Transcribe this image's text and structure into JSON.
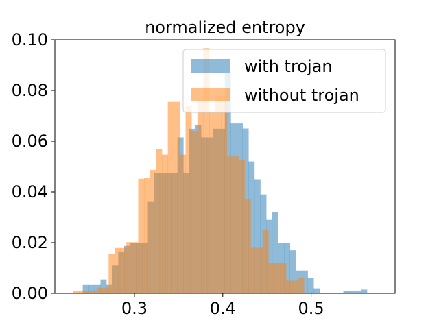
{
  "chart_data": {
    "type": "histogram",
    "title": "normalized entropy",
    "xlabel": "",
    "ylabel": "",
    "xlim": [
      0.21,
      0.595
    ],
    "ylim": [
      0,
      0.1
    ],
    "x_ticks": [
      0.3,
      0.4,
      0.5
    ],
    "x_tick_labels": [
      "0.3",
      "0.4",
      "0.5"
    ],
    "y_ticks": [
      0,
      0.02,
      0.04,
      0.06,
      0.08,
      0.1
    ],
    "y_tick_labels": [
      "0.00",
      "0.02",
      "0.04",
      "0.06",
      "0.08",
      "0.10"
    ],
    "grid": false,
    "legend_position": "upper right",
    "series": [
      {
        "name": "with trojan",
        "color": "#1f77b4",
        "alpha": 0.5,
        "bin_width": 0.0067,
        "bins": [
          [
            0.2415,
            0.0033
          ],
          [
            0.2482,
            0.0033
          ],
          [
            0.2549,
            0.0033
          ],
          [
            0.2616,
            0.0055
          ],
          [
            0.2683,
            0.0033
          ],
          [
            0.275,
            0.011
          ],
          [
            0.2817,
            0.0165
          ],
          [
            0.2884,
            0.0187
          ],
          [
            0.2951,
            0.0198
          ],
          [
            0.3018,
            0.0198
          ],
          [
            0.3085,
            0.0198
          ],
          [
            0.3152,
            0.0363
          ],
          [
            0.3219,
            0.0475
          ],
          [
            0.3286,
            0.0475
          ],
          [
            0.3353,
            0.0475
          ],
          [
            0.342,
            0.0475
          ],
          [
            0.3487,
            0.0615
          ],
          [
            0.3554,
            0.0475
          ],
          [
            0.3621,
            0.0649
          ],
          [
            0.3688,
            0.0665
          ],
          [
            0.3755,
            0.0615
          ],
          [
            0.3822,
            0.0615
          ],
          [
            0.3889,
            0.0649
          ],
          [
            0.3956,
            0.0649
          ],
          [
            0.4023,
            0.087
          ],
          [
            0.409,
            0.067
          ],
          [
            0.4157,
            0.067
          ],
          [
            0.4224,
            0.065
          ],
          [
            0.4291,
            0.052
          ],
          [
            0.4358,
            0.045
          ],
          [
            0.4425,
            0.039
          ],
          [
            0.4492,
            0.029
          ],
          [
            0.4559,
            0.032
          ],
          [
            0.4626,
            0.02
          ],
          [
            0.4693,
            0.02
          ],
          [
            0.476,
            0.017
          ],
          [
            0.4827,
            0.009
          ],
          [
            0.4894,
            0.009
          ],
          [
            0.4961,
            0.006
          ],
          [
            0.5028,
            0.002
          ],
          [
            0.5364,
            0.001
          ],
          [
            0.5431,
            0.001
          ],
          [
            0.5498,
            0.001
          ],
          [
            0.5565,
            0.0015
          ]
        ]
      },
      {
        "name": "without trojan",
        "color": "#ff7f0e",
        "alpha": 0.5,
        "bin_width": 0.0067,
        "bins": [
          [
            0.2306,
            0.0011
          ],
          [
            0.2373,
            0.0011
          ],
          [
            0.244,
            0.0011
          ],
          [
            0.2507,
            0.0011
          ],
          [
            0.2574,
            0.0022
          ],
          [
            0.2641,
            0.0022
          ],
          [
            0.2708,
            0.0157
          ],
          [
            0.2775,
            0.0179
          ],
          [
            0.2842,
            0.0179
          ],
          [
            0.2909,
            0.0202
          ],
          [
            0.2976,
            0.0202
          ],
          [
            0.3043,
            0.0452
          ],
          [
            0.311,
            0.0456
          ],
          [
            0.3177,
            0.0487
          ],
          [
            0.3244,
            0.057
          ],
          [
            0.3311,
            0.0547
          ],
          [
            0.3378,
            0.0755
          ],
          [
            0.3445,
            0.0755
          ],
          [
            0.3512,
            0.0547
          ],
          [
            0.3579,
            0.074
          ],
          [
            0.3646,
            0.064
          ],
          [
            0.3713,
            0.0757
          ],
          [
            0.378,
            0.0967
          ],
          [
            0.3847,
            0.0715
          ],
          [
            0.3914,
            0.0778
          ],
          [
            0.3981,
            0.0778
          ],
          [
            0.4048,
            0.054
          ],
          [
            0.4115,
            0.054
          ],
          [
            0.4182,
            0.0525
          ],
          [
            0.4249,
            0.037
          ],
          [
            0.4316,
            0.018
          ],
          [
            0.4383,
            0.018
          ],
          [
            0.445,
            0.025
          ],
          [
            0.4517,
            0.012
          ],
          [
            0.4584,
            0.012
          ],
          [
            0.4651,
            0.012
          ],
          [
            0.4718,
            0.005
          ],
          [
            0.4785,
            0.005
          ],
          [
            0.4852,
            0.006
          ]
        ]
      }
    ]
  }
}
